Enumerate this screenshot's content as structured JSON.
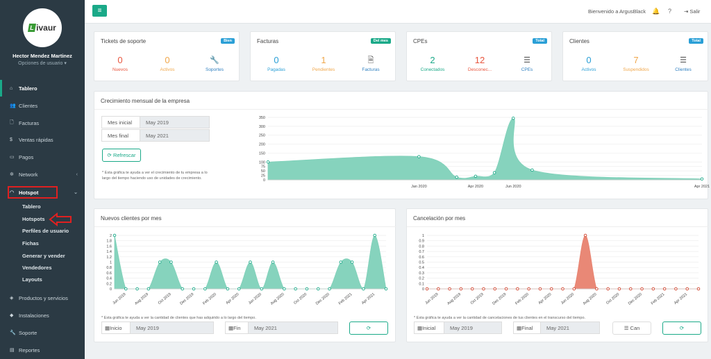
{
  "sidebar": {
    "logo_text": "ivaur",
    "logo_mark": "L",
    "user_name": "Hector Mendez Martinez",
    "user_options": "Opciones de usuario",
    "nav": [
      {
        "label": "Tablero",
        "icon": "home-icon"
      },
      {
        "label": "Clientes",
        "icon": "users-icon"
      },
      {
        "label": "Facturas",
        "icon": "file-icon"
      },
      {
        "label": "Ventas rápidas",
        "icon": "dollar-icon"
      },
      {
        "label": "Pagos",
        "icon": "card-icon"
      },
      {
        "label": "Network",
        "icon": "network-icon"
      },
      {
        "label": "Hotspot",
        "icon": "wifi-icon"
      },
      {
        "label": "Productos y servicios",
        "icon": "tags-icon"
      },
      {
        "label": "Instalaciones",
        "icon": "tag-icon"
      },
      {
        "label": "Soporte",
        "icon": "wrench-icon"
      },
      {
        "label": "Reportes",
        "icon": "database-icon"
      }
    ],
    "hotspot_sub": [
      "Tablero",
      "Hotspots",
      "Perfiles de usuario",
      "Fichas",
      "Generar y vender",
      "Vendedores",
      "Layouts"
    ]
  },
  "topbar": {
    "welcome": "Bienvenido a ArgusBlack",
    "logout": "Salir"
  },
  "stats": [
    {
      "title": "Tickets de soporte",
      "badge": "Bien",
      "badge_color": "#2a9fd6",
      "items": [
        {
          "value": "0",
          "label": "Nuevos",
          "color": "#e8553e"
        },
        {
          "value": "0",
          "label": "Activos",
          "color": "#f0a74b"
        },
        {
          "icon": "wrench-icon",
          "glyph": "🔧",
          "label": "Soportes",
          "color": "#2e7fc0"
        }
      ]
    },
    {
      "title": "Facturas",
      "badge": "Del mes",
      "badge_color": "#1aa988",
      "items": [
        {
          "value": "0",
          "label": "Pagadas",
          "color": "#2a9fd6"
        },
        {
          "value": "1",
          "label": "Pendientes",
          "color": "#f0a74b"
        },
        {
          "icon": "file-icon",
          "glyph": "🗎",
          "label": "Facturas",
          "color": "#2e7fc0"
        }
      ]
    },
    {
      "title": "CPEs",
      "badge": "Total",
      "badge_color": "#2a9fd6",
      "items": [
        {
          "value": "2",
          "label": "Conectados",
          "color": "#1aa988"
        },
        {
          "value": "12",
          "label": "Desconec...",
          "color": "#e8553e"
        },
        {
          "icon": "list-icon",
          "glyph": "☰",
          "label": "CPEs",
          "color": "#2e7fc0"
        }
      ]
    },
    {
      "title": "Clientes",
      "badge": "Total",
      "badge_color": "#2a9fd6",
      "items": [
        {
          "value": "0",
          "label": "Activos",
          "color": "#2a9fd6"
        },
        {
          "value": "7",
          "label": "Suspendidos",
          "color": "#f0a74b"
        },
        {
          "icon": "list-icon",
          "glyph": "☰",
          "label": "Clientes",
          "color": "#2e7fc0"
        }
      ]
    }
  ],
  "growth": {
    "title": "Crecimiento mensual de la empresa",
    "start_label": "Mes inicial",
    "start_value": "May 2019",
    "end_label": "Mes final",
    "end_value": "May 2021",
    "refresh": "Refrescar",
    "note": "* Esta gráfica te ayuda a ver el crecimiento de tu empresa a lo largo del tiempo haciendo uso de unidades de crecimiento."
  },
  "new_clients": {
    "title": "Nuevos clientes por mes",
    "note": "* Esta gráfica te ayuda a ver la cantidad de clientes que has adquirido a lo largo del tiempo.",
    "start_label": "Inicio",
    "start_value": "May 2019",
    "end_label": "Fin",
    "end_value": "May 2021"
  },
  "cancel": {
    "title": "Cancelación por mes",
    "note": "* Esta gráfica te ayuda a ver la cantidad de cancelaciones de tus clientes en el transcurso del tiempo.",
    "start_label": "Inicial",
    "start_value": "May 2019",
    "end_label": "Final",
    "end_value": "May 2021",
    "can_label": "Can"
  },
  "chart_data": [
    {
      "type": "area",
      "color": "#7fd1b9",
      "x": [
        "May 2019",
        "Jan 2020",
        "Mar 2020",
        "Apr 2020",
        "May 2020",
        "Jun 2020",
        "Jul 2020",
        "Apr 2021"
      ],
      "y": [
        100,
        130,
        15,
        20,
        40,
        345,
        55,
        5
      ],
      "x_ticks": [
        "Jan 2020",
        "Apr 2020",
        "Jun 2020",
        "Apr 2021"
      ],
      "ylim": [
        0,
        350
      ],
      "yticks": [
        0,
        25,
        50,
        75,
        100,
        150,
        200,
        250,
        300,
        350
      ]
    },
    {
      "type": "area",
      "color": "#7fd1b9",
      "x": [
        "May 2019",
        "Jun 2019",
        "Jul 2019",
        "Aug 2019",
        "Sep 2019",
        "Oct 2019",
        "Nov 2019",
        "Dec 2019",
        "Jan 2020",
        "Feb 2020",
        "Mar 2020",
        "Apr 2020",
        "May 2020",
        "Jun 2020",
        "Jul 2020",
        "Aug 2020",
        "Sep 2020",
        "Oct 2020",
        "Nov 2020",
        "Dec 2020",
        "Jan 2021",
        "Feb 2021",
        "Mar 2021",
        "Apr 2021",
        "May 2021"
      ],
      "y": [
        2,
        0,
        0,
        0,
        1,
        1,
        0,
        0,
        0,
        1,
        0,
        0,
        1,
        0,
        1,
        0,
        0,
        0,
        0,
        0,
        1,
        1,
        0,
        2,
        0
      ],
      "x_ticks": [
        "Jun 2019",
        "Aug 2019",
        "Oct 2019",
        "Dec 2019",
        "Feb 2020",
        "Apr 2020",
        "Jun 2020",
        "Aug 2020",
        "Oct 2020",
        "Dec 2020",
        "Feb 2021",
        "Apr 2021"
      ],
      "ylim": [
        0,
        2.0
      ],
      "yticks": [
        0,
        0.2,
        0.4,
        0.6,
        0.8,
        1.0,
        1.2,
        1.4,
        1.6,
        1.8,
        2.0
      ]
    },
    {
      "type": "area",
      "color": "#e8826f",
      "x": [
        "May 2019",
        "Jun 2019",
        "Jul 2019",
        "Aug 2019",
        "Sep 2019",
        "Oct 2019",
        "Nov 2019",
        "Dec 2019",
        "Jan 2020",
        "Feb 2020",
        "Mar 2020",
        "Apr 2020",
        "May 2020",
        "Jun 2020",
        "Jul 2020",
        "Aug 2020",
        "Sep 2020",
        "Oct 2020",
        "Nov 2020",
        "Dec 2020",
        "Jan 2021",
        "Feb 2021",
        "Mar 2021",
        "Apr 2021",
        "May 2021"
      ],
      "y": [
        0,
        0,
        0,
        0,
        0,
        0,
        0,
        0,
        0,
        0,
        0,
        0,
        0,
        0,
        1,
        0,
        0,
        0,
        0,
        0,
        0,
        0,
        0,
        0,
        0
      ],
      "x_ticks": [
        "Jun 2019",
        "Aug 2019",
        "Oct 2019",
        "Dec 2019",
        "Feb 2020",
        "Apr 2020",
        "Jun 2020",
        "Aug 2020",
        "Oct 2020",
        "Dec 2020",
        "Feb 2021",
        "Apr 2021"
      ],
      "ylim": [
        0,
        1.0
      ],
      "yticks": [
        0,
        0.1,
        0.2,
        0.3,
        0.4,
        0.5,
        0.6,
        0.7,
        0.8,
        0.9,
        1.0
      ]
    }
  ]
}
